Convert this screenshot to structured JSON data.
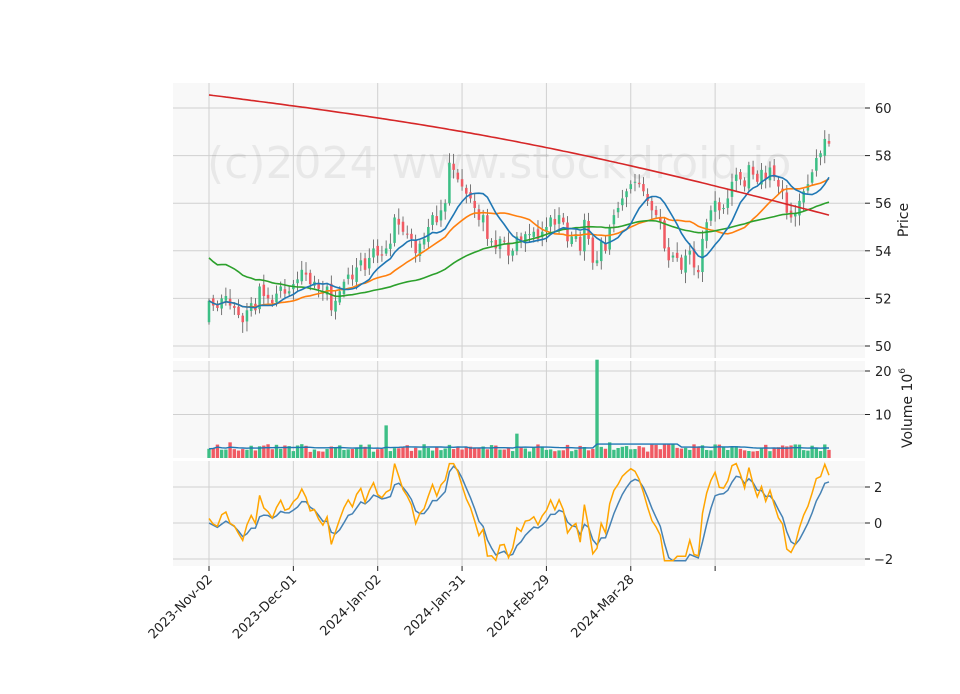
{
  "watermark": "(c)2024 www.stockdroid.io",
  "price_panel": {
    "ylabel": "Price",
    "yticks": [
      "50",
      "52",
      "54",
      "56",
      "58",
      "60"
    ]
  },
  "volume_panel": {
    "ylabel": "Volume  10",
    "ylabel_exp": "6",
    "yticks": [
      "10",
      "20"
    ]
  },
  "osc_panel": {
    "yticks": [
      "−2",
      "0",
      "2"
    ]
  },
  "xticks": [
    "2023-Nov-02",
    "2023-Dec-01",
    "2024-Jan-02",
    "2024-Jan-31",
    "2024-Feb-29",
    "2024-Mar-28"
  ],
  "colors": {
    "up": "#3dbf86",
    "down": "#f05a63",
    "ma_short": "#1f77b4",
    "ma_mid": "#ff7f0e",
    "ma_long": "#2ca02c",
    "ma_200": "#d62728",
    "vol_ma": "#1f77b4",
    "osc_a": "#4682b4",
    "osc_b": "#ffa500",
    "panel_bg": "#f8f8f8",
    "grid": "#d0d0d0"
  },
  "chart_data": {
    "type": "candlestick",
    "x_start": "2023-11-02",
    "x_end": "2024-04-26",
    "price_ylim": [
      50,
      61
    ],
    "volume_ylim": [
      0,
      22
    ],
    "osc_ylim": [
      -2.2,
      3.4
    ],
    "grid": true,
    "close": [
      51.9,
      51.7,
      51.6,
      52.0,
      52.1,
      51.7,
      51.6,
      51.3,
      51.0,
      51.5,
      51.8,
      51.5,
      52.5,
      52.1,
      52.0,
      51.8,
      52.2,
      52.5,
      52.2,
      52.3,
      52.6,
      52.8,
      53.2,
      53.0,
      52.6,
      52.7,
      52.4,
      52.2,
      52.5,
      51.5,
      51.9,
      52.3,
      52.7,
      53.0,
      52.8,
      53.3,
      53.6,
      53.2,
      53.7,
      54.1,
      53.8,
      53.8,
      54.1,
      54.3,
      55.4,
      55.1,
      54.8,
      54.7,
      54.5,
      53.9,
      54.3,
      54.5,
      55.0,
      55.5,
      55.2,
      55.7,
      56.0,
      57.7,
      57.4,
      57.0,
      56.7,
      56.4,
      56.2,
      55.8,
      55.3,
      55.5,
      54.5,
      54.4,
      54.1,
      54.5,
      54.4,
      53.8,
      54.0,
      54.6,
      54.4,
      54.7,
      54.7,
      54.8,
      54.5,
      54.8,
      55.0,
      55.4,
      55.1,
      55.5,
      55.2,
      54.4,
      54.6,
      54.7,
      54.0,
      55.3,
      54.5,
      53.5,
      53.6,
      54.4,
      54.0,
      55.0,
      55.5,
      55.8,
      56.2,
      56.5,
      56.8,
      56.9,
      56.8,
      56.5,
      56.1,
      55.7,
      55.5,
      55.2,
      54.1,
      53.6,
      53.8,
      53.7,
      53.2,
      53.8,
      54.0,
      53.3,
      53.1,
      54.5,
      55.2,
      55.7,
      56.1,
      55.7,
      55.8,
      56.2,
      56.9,
      57.2,
      57.0,
      56.7,
      57.6,
      57.2,
      56.9,
      57.4,
      57.0,
      57.5,
      57.1,
      56.7,
      56.5,
      55.6,
      55.4,
      55.6,
      56.1,
      56.5,
      56.8,
      57.3,
      57.9,
      58.1,
      58.7,
      58.5
    ]
  }
}
